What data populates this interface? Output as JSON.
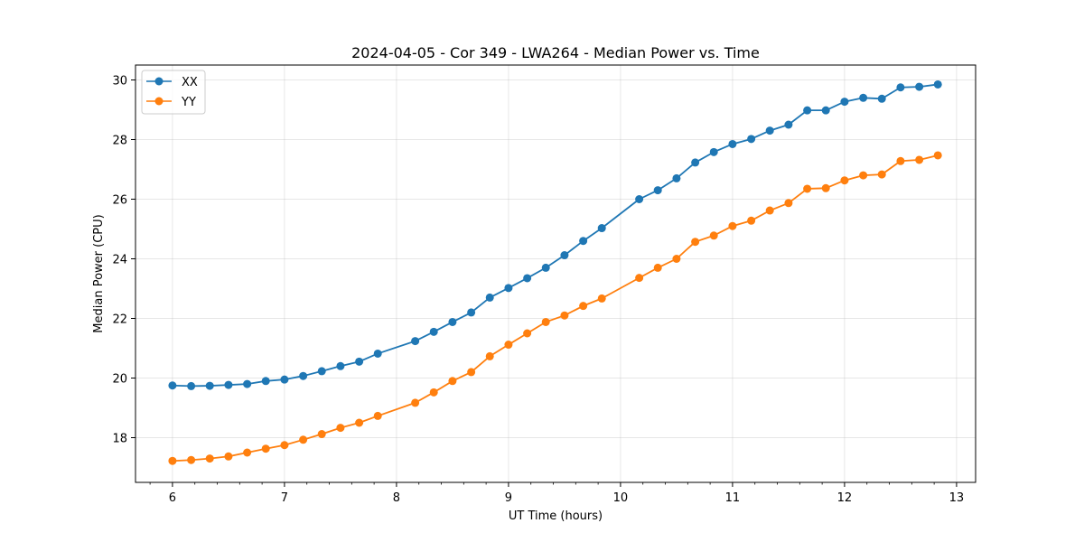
{
  "chart_data": {
    "type": "line",
    "title": "2024-04-05 - Cor 349 - LWA264 - Median Power vs. Time",
    "xlabel": "UT Time (hours)",
    "ylabel": "Median Power (CPU)",
    "xlim": [
      5.67,
      13.17
    ],
    "ylim": [
      16.5,
      30.5
    ],
    "xticks": [
      6,
      7,
      8,
      9,
      10,
      11,
      12,
      13
    ],
    "yticks": [
      18,
      20,
      22,
      24,
      26,
      28,
      30
    ],
    "grid": true,
    "legend_position": "top-left",
    "series": [
      {
        "name": "XX",
        "color": "#1f77b4",
        "x": [
          6.0,
          6.167,
          6.333,
          6.5,
          6.667,
          6.833,
          7.0,
          7.167,
          7.333,
          7.5,
          7.667,
          7.833,
          8.167,
          8.333,
          8.5,
          8.667,
          8.833,
          9.0,
          9.167,
          9.333,
          9.5,
          9.667,
          9.833,
          10.167,
          10.333,
          10.5,
          10.667,
          10.833,
          11.0,
          11.167,
          11.333,
          11.5,
          11.667,
          11.833,
          12.0,
          12.167,
          12.333,
          12.5,
          12.667,
          12.833
        ],
        "y": [
          19.75,
          19.73,
          19.74,
          19.77,
          19.8,
          19.9,
          19.95,
          20.07,
          20.23,
          20.4,
          20.55,
          20.82,
          21.24,
          21.55,
          21.88,
          22.2,
          22.7,
          23.02,
          23.35,
          23.7,
          24.12,
          24.6,
          25.03,
          26.0,
          26.3,
          26.7,
          27.23,
          27.58,
          27.85,
          28.02,
          28.3,
          28.5,
          28.98,
          28.98,
          29.27,
          29.4,
          29.37,
          29.75,
          29.77,
          29.85
        ]
      },
      {
        "name": "YY",
        "color": "#ff7f0e",
        "x": [
          6.0,
          6.167,
          6.333,
          6.5,
          6.667,
          6.833,
          7.0,
          7.167,
          7.333,
          7.5,
          7.667,
          7.833,
          8.167,
          8.333,
          8.5,
          8.667,
          8.833,
          9.0,
          9.167,
          9.333,
          9.5,
          9.667,
          9.833,
          10.167,
          10.333,
          10.5,
          10.667,
          10.833,
          11.0,
          11.167,
          11.333,
          11.5,
          11.667,
          11.833,
          12.0,
          12.167,
          12.333,
          12.5,
          12.667,
          12.833
        ],
        "y": [
          17.22,
          17.25,
          17.3,
          17.37,
          17.5,
          17.63,
          17.75,
          17.93,
          18.12,
          18.33,
          18.5,
          18.73,
          19.17,
          19.52,
          19.9,
          20.2,
          20.73,
          21.12,
          21.5,
          21.88,
          22.1,
          22.42,
          22.67,
          23.36,
          23.7,
          24.0,
          24.57,
          24.78,
          25.1,
          25.28,
          25.62,
          25.87,
          26.35,
          26.37,
          26.63,
          26.8,
          26.83,
          27.28,
          27.32,
          27.47
        ]
      }
    ]
  }
}
